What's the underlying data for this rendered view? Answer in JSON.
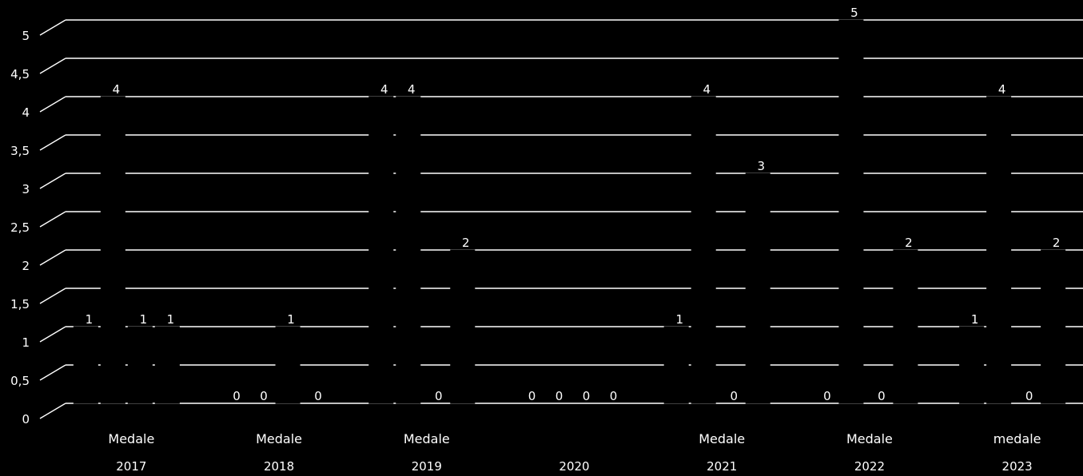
{
  "chart_data": {
    "type": "bar",
    "style": "3d-columns",
    "background": "#000000",
    "foreground": "#ffffff",
    "ylim": [
      0,
      5
    ],
    "ytick_labels": [
      "0",
      "0,5",
      "1",
      "1,5",
      "2",
      "2,5",
      "3",
      "3,5",
      "4",
      "4,5",
      "5"
    ],
    "grid": true,
    "groups": [
      {
        "year": "2017",
        "label": "Medale",
        "values": [
          1,
          4,
          1,
          1
        ]
      },
      {
        "year": "2018",
        "label": "Medale",
        "values": [
          0,
          0,
          1,
          0
        ]
      },
      {
        "year": "2019",
        "label": "Medale",
        "values": [
          4,
          4,
          0,
          2
        ]
      },
      {
        "year": "2020",
        "label": "",
        "values": [
          0,
          0,
          0,
          0
        ]
      },
      {
        "year": "2021",
        "label": "Medale",
        "values": [
          1,
          4,
          0,
          3
        ]
      },
      {
        "year": "2022",
        "label": "Medale",
        "values": [
          0,
          5,
          0,
          2
        ]
      },
      {
        "year": "2023",
        "label": "medale",
        "values": [
          1,
          4,
          0,
          2
        ]
      }
    ]
  }
}
